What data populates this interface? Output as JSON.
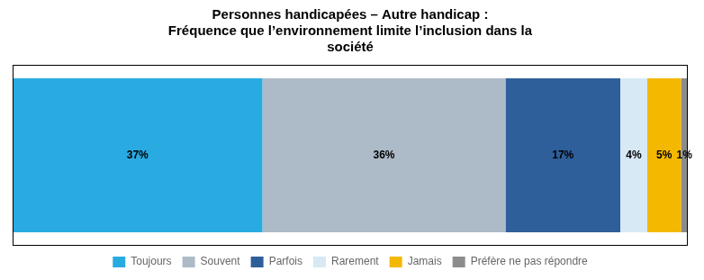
{
  "chart_data": {
    "type": "bar",
    "title": "Personnes handicapées – Autre handicap :\nFréquence que l’environnement limite l’inclusion dans la\nsociété",
    "orientation": "horizontal",
    "stacked": true,
    "categories": [
      null
    ],
    "series": [
      {
        "name": "Toujours",
        "color": "#29ABE2",
        "values": [
          37
        ],
        "value_labels": [
          "37%"
        ]
      },
      {
        "name": "Souvent",
        "color": "#ADBAC7",
        "values": [
          36
        ],
        "value_labels": [
          "36%"
        ]
      },
      {
        "name": "Parfois",
        "color": "#2E5F9A",
        "values": [
          17
        ],
        "value_labels": [
          "17%"
        ]
      },
      {
        "name": "Rarement",
        "color": "#D6E9F5",
        "values": [
          4
        ],
        "value_labels": [
          "4%"
        ]
      },
      {
        "name": "Jamais",
        "color": "#F5B800",
        "values": [
          5
        ],
        "value_labels": [
          "5%"
        ]
      },
      {
        "name": "Préfère ne pas répondre",
        "color": "#8C8C8C",
        "values": [
          1
        ],
        "value_labels": [
          "1%"
        ]
      }
    ],
    "xlim": [
      0,
      100
    ],
    "tick_labels": false,
    "grid": false,
    "legend": "bottom",
    "data_labels": true
  }
}
